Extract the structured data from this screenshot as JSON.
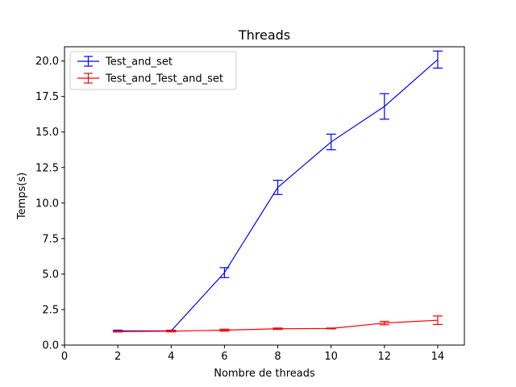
{
  "chart_data": {
    "type": "line",
    "title": "Threads",
    "xlabel": "Nombre de threads",
    "ylabel": "Temps(s)",
    "xlim": [
      0,
      15
    ],
    "ylim": [
      0,
      21
    ],
    "xticks": [
      0,
      2,
      4,
      6,
      8,
      10,
      12,
      14
    ],
    "yticks": [
      0.0,
      2.5,
      5.0,
      7.5,
      10.0,
      12.5,
      15.0,
      17.5,
      20.0
    ],
    "xtick_labels": [
      "0",
      "2",
      "4",
      "6",
      "8",
      "10",
      "12",
      "14"
    ],
    "ytick_labels": [
      "0.0",
      "2.5",
      "5.0",
      "7.5",
      "10.0",
      "12.5",
      "15.0",
      "17.5",
      "20.0"
    ],
    "grid": false,
    "legend_position": "top-left",
    "x": [
      2,
      4,
      6,
      8,
      10,
      12,
      14
    ],
    "series": [
      {
        "name": "Test_and_set",
        "color": "#0000ff",
        "values": [
          1.0,
          1.0,
          5.1,
          11.1,
          14.3,
          16.8,
          20.1
        ],
        "errors": [
          0.05,
          0.05,
          0.35,
          0.5,
          0.55,
          0.9,
          0.6
        ]
      },
      {
        "name": "Test_and_Test_and_set",
        "color": "#ff0000",
        "values": [
          0.95,
          0.98,
          1.05,
          1.15,
          1.17,
          1.55,
          1.75
        ],
        "errors": [
          0.03,
          0.05,
          0.07,
          0.05,
          0.03,
          0.12,
          0.3
        ]
      }
    ]
  }
}
